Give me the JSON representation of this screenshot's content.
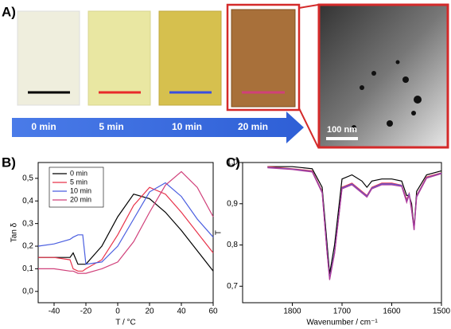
{
  "panel_a": {
    "label": "A)",
    "time_labels": [
      "0 min",
      "5 min",
      "10 min",
      "20 min"
    ],
    "scale_bar": "100 nm"
  },
  "chart_data": [
    {
      "type": "line",
      "panel_label": "B)",
      "xlabel": "T / °C",
      "ylabel": "Tan δ",
      "x": [
        -50,
        -40,
        -30,
        -28,
        -25,
        -22,
        -20,
        -10,
        0,
        10,
        20,
        30,
        40,
        50,
        60
      ],
      "series": [
        {
          "name": "0 min",
          "color": "#000000",
          "values": [
            0.15,
            0.15,
            0.15,
            0.17,
            0.12,
            0.12,
            0.12,
            0.2,
            0.33,
            0.43,
            0.41,
            0.35,
            0.27,
            0.18,
            0.09
          ]
        },
        {
          "name": "5 min",
          "color": "#e8334a",
          "values": [
            0.15,
            0.15,
            0.14,
            0.1,
            0.09,
            0.09,
            0.1,
            0.14,
            0.25,
            0.38,
            0.46,
            0.43,
            0.35,
            0.26,
            0.17
          ]
        },
        {
          "name": "10 min",
          "color": "#4a5ee0",
          "values": [
            0.2,
            0.21,
            0.23,
            0.24,
            0.25,
            0.25,
            0.12,
            0.13,
            0.2,
            0.32,
            0.44,
            0.48,
            0.42,
            0.32,
            0.24
          ]
        },
        {
          "name": "20 min",
          "color": "#d0407a",
          "values": [
            0.1,
            0.1,
            0.09,
            0.09,
            0.08,
            0.08,
            0.08,
            0.1,
            0.13,
            0.22,
            0.35,
            0.47,
            0.53,
            0.46,
            0.33
          ]
        }
      ],
      "xlim": [
        -50,
        60
      ],
      "xticks": [
        -40,
        -20,
        0,
        20,
        40,
        60
      ],
      "ylim": [
        -0.05,
        0.57
      ],
      "yticks": [
        {
          "value": 0,
          "label": "0,0"
        },
        {
          "value": 0.1,
          "label": "0,1"
        },
        {
          "value": 0.2,
          "label": "0,2"
        },
        {
          "value": 0.3,
          "label": "0,3"
        },
        {
          "value": 0.4,
          "label": "0,4"
        },
        {
          "value": 0.5,
          "label": "0,5"
        }
      ],
      "legend": "upper left"
    },
    {
      "type": "line",
      "panel_label": "C)",
      "xlabel": "Wavenumber / cm⁻¹",
      "ylabel": "T",
      "x": [
        1850,
        1800,
        1760,
        1740,
        1730,
        1725,
        1715,
        1700,
        1680,
        1660,
        1650,
        1640,
        1620,
        1600,
        1580,
        1570,
        1565,
        1560,
        1555,
        1550,
        1530,
        1500
      ],
      "series": [
        {
          "color": "#000000",
          "values": [
            0.99,
            0.99,
            0.985,
            0.94,
            0.8,
            0.73,
            0.8,
            0.96,
            0.97,
            0.955,
            0.94,
            0.955,
            0.96,
            0.96,
            0.955,
            0.92,
            0.92,
            0.9,
            0.84,
            0.93,
            0.97,
            0.98
          ]
        },
        {
          "color": "#e8334a",
          "values": [
            0.99,
            0.985,
            0.98,
            0.93,
            0.78,
            0.72,
            0.78,
            0.94,
            0.95,
            0.93,
            0.92,
            0.94,
            0.95,
            0.95,
            0.945,
            0.91,
            0.925,
            0.89,
            0.84,
            0.92,
            0.965,
            0.975
          ]
        },
        {
          "color": "#4a5ee0",
          "values": [
            0.988,
            0.984,
            0.978,
            0.928,
            0.782,
            0.718,
            0.782,
            0.938,
            0.948,
            0.928,
            0.918,
            0.938,
            0.948,
            0.948,
            0.944,
            0.905,
            0.925,
            0.885,
            0.838,
            0.918,
            0.963,
            0.974
          ]
        },
        {
          "color": "#b03a9a",
          "values": [
            0.987,
            0.983,
            0.977,
            0.926,
            0.779,
            0.715,
            0.779,
            0.936,
            0.946,
            0.926,
            0.916,
            0.936,
            0.946,
            0.946,
            0.942,
            0.903,
            0.922,
            0.883,
            0.836,
            0.916,
            0.962,
            0.973
          ]
        }
      ],
      "xlim": [
        1900,
        1500
      ],
      "xticks": [
        1800,
        1700,
        1600,
        1500
      ],
      "ylim": [
        0.66,
        1.0
      ],
      "yticks": [
        {
          "value": 0.7,
          "label": "0,7"
        },
        {
          "value": 0.8,
          "label": "0,8"
        },
        {
          "value": 0.9,
          "label": "0,9"
        },
        {
          "value": 1.0,
          "label": "1,0"
        }
      ]
    }
  ]
}
